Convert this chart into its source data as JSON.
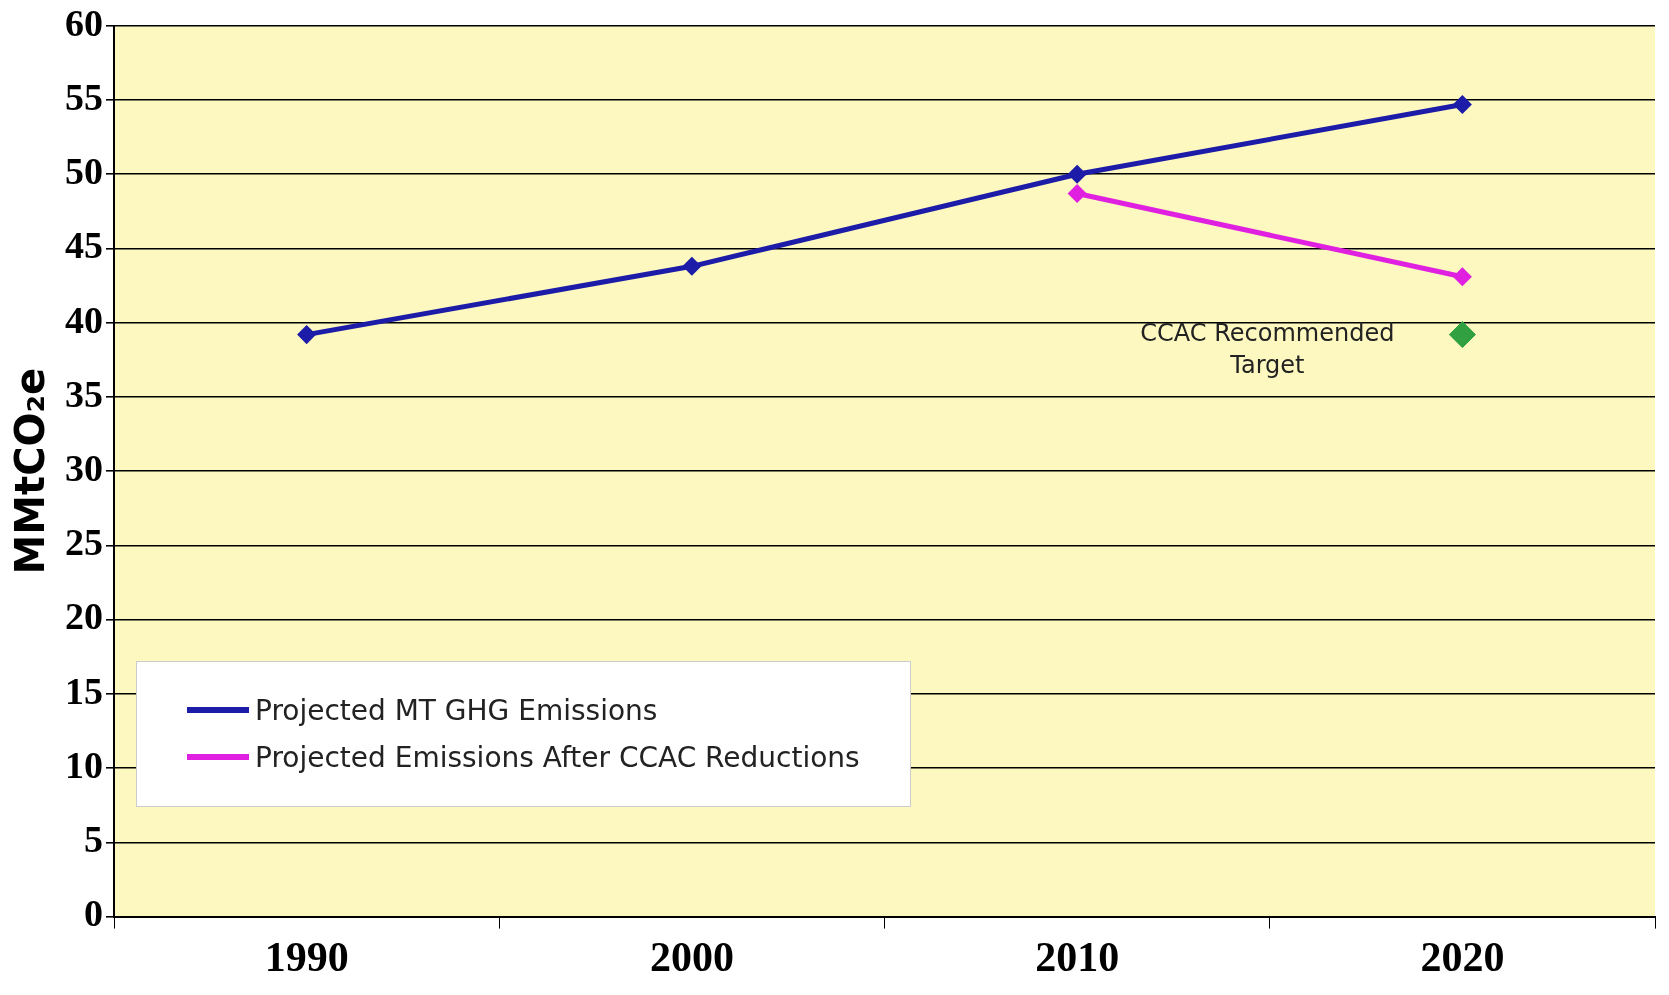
{
  "chart_data": {
    "type": "line",
    "ylabel": "MMtCO₂e",
    "categories": [
      "1990",
      "2000",
      "2010",
      "2020"
    ],
    "series": [
      {
        "name": "Projected MT GHG Emissions",
        "color": "#1c1ca8",
        "values": [
          39.2,
          43.8,
          50,
          54.7
        ]
      },
      {
        "name": "Projected Emissions After CCAC Reductions",
        "color": "#e020e0",
        "values": [
          null,
          null,
          48.7,
          43.1
        ]
      },
      {
        "type": "scatter",
        "color": "#30a040",
        "values": [
          null,
          null,
          null,
          39.2
        ]
      }
    ],
    "ylim": [
      0,
      60
    ],
    "yticks": [
      0,
      5,
      10,
      15,
      20,
      25,
      30,
      35,
      40,
      45,
      50,
      55,
      60
    ],
    "annotations": [
      {
        "text": "CCAC Recommended Target",
        "x": "2020",
        "y": 39.2
      }
    ],
    "grid": "y",
    "legend": "bottom left",
    "marker": "diamond",
    "line_style": "solid"
  }
}
